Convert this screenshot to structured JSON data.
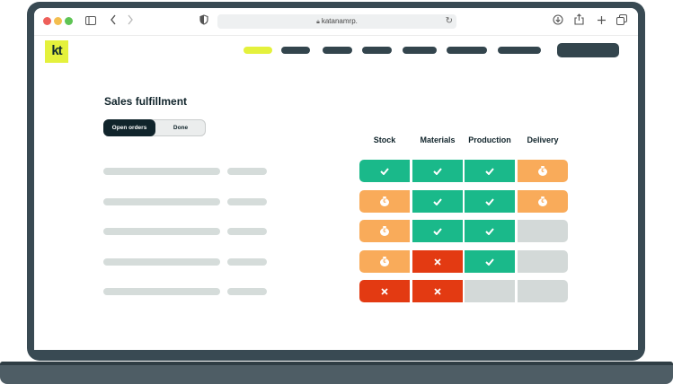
{
  "browser": {
    "url": "katanamrp.",
    "icons": [
      "sidebar-icon",
      "back-icon",
      "forward-icon",
      "shield-icon",
      "lock-icon",
      "reload-icon",
      "download-icon",
      "share-icon",
      "new-tab-icon",
      "tabs-icon"
    ]
  },
  "app": {
    "logo_text": "kt",
    "title": "Sales fulfillment",
    "toggle": {
      "open_label": "Open orders",
      "done_label": "Done",
      "selected": "Open orders"
    },
    "columns": [
      "Stock",
      "Materials",
      "Production",
      "Delivery"
    ],
    "rows": [
      [
        "check",
        "check",
        "check",
        "money"
      ],
      [
        "money",
        "check",
        "check",
        "money"
      ],
      [
        "money",
        "check",
        "check",
        "empty"
      ],
      [
        "money",
        "cross",
        "check",
        "empty"
      ],
      [
        "cross",
        "cross",
        "empty",
        "empty"
      ]
    ],
    "status_colors": {
      "check": "#1ab98a",
      "money": "#f9ab5a",
      "cross": "#e33a12",
      "empty": "#d3d9d8"
    },
    "accent_color": "#e4f13c",
    "dark_color": "#10242b"
  }
}
